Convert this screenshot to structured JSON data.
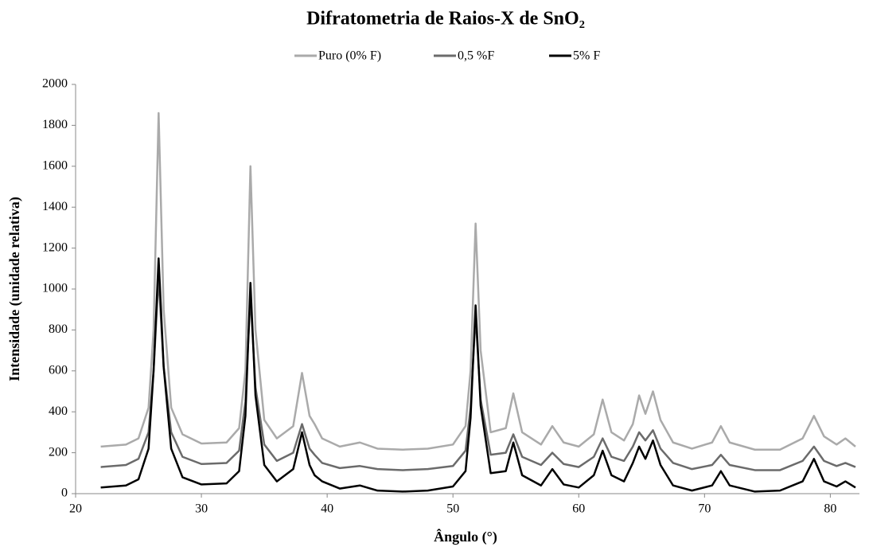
{
  "chart_data": {
    "type": "line",
    "title": "Difratometria de Raios-X de SnO₂",
    "x_label": "Ângulo (°)",
    "y_label": "Intensidade (unidade relativa)",
    "xlim": [
      20,
      82
    ],
    "xticks": [
      20,
      30,
      40,
      50,
      60,
      70,
      80
    ],
    "ylim": [
      0,
      2000
    ],
    "yticks": [
      0,
      200,
      400,
      600,
      800,
      1000,
      1200,
      1400,
      1600,
      1800,
      2000
    ],
    "grid": false,
    "legend": "top",
    "x": [
      22,
      24,
      25,
      25.8,
      26.2,
      26.6,
      27.0,
      27.6,
      28.5,
      30,
      32,
      33,
      33.5,
      33.9,
      34.3,
      35,
      36,
      37.3,
      38.0,
      38.6,
      39.0,
      39.6,
      41,
      42.6,
      44,
      46,
      48,
      50,
      51,
      51.4,
      51.8,
      52.2,
      53,
      54.2,
      54.8,
      55.5,
      57,
      57.9,
      58.8,
      60,
      61.2,
      61.9,
      62.6,
      63.6,
      64.3,
      64.8,
      65.3,
      65.9,
      66.5,
      67.5,
      69,
      70.6,
      71.3,
      72,
      74,
      76,
      77.8,
      78.7,
      79.5,
      80.5,
      81.2,
      82
    ],
    "series": [
      {
        "name": "Puro (0% F)",
        "color": "#aaaaaa",
        "values": [
          230,
          240,
          270,
          420,
          800,
          1860,
          900,
          420,
          290,
          245,
          250,
          320,
          600,
          1600,
          800,
          360,
          270,
          330,
          590,
          380,
          340,
          270,
          230,
          250,
          220,
          215,
          220,
          240,
          330,
          600,
          1320,
          700,
          300,
          320,
          490,
          300,
          240,
          330,
          250,
          230,
          290,
          460,
          300,
          260,
          340,
          480,
          390,
          500,
          360,
          250,
          220,
          250,
          330,
          250,
          215,
          215,
          270,
          380,
          280,
          240,
          270,
          230
        ]
      },
      {
        "name": "0,5 %F",
        "color": "#6b6b6b",
        "values": [
          130,
          140,
          170,
          300,
          600,
          1060,
          620,
          300,
          180,
          145,
          150,
          210,
          450,
          970,
          520,
          240,
          160,
          200,
          340,
          220,
          190,
          150,
          125,
          135,
          120,
          115,
          120,
          135,
          210,
          420,
          870,
          460,
          190,
          200,
          290,
          180,
          140,
          200,
          145,
          130,
          180,
          270,
          180,
          160,
          230,
          300,
          260,
          310,
          220,
          150,
          120,
          140,
          190,
          140,
          115,
          115,
          160,
          230,
          160,
          135,
          150,
          130
        ]
      },
      {
        "name": "5% F",
        "color": "#000000",
        "values": [
          30,
          40,
          70,
          220,
          600,
          1150,
          620,
          220,
          80,
          45,
          50,
          110,
          380,
          1030,
          480,
          140,
          60,
          120,
          300,
          140,
          90,
          60,
          25,
          40,
          15,
          10,
          15,
          35,
          110,
          370,
          920,
          430,
          100,
          110,
          250,
          90,
          40,
          120,
          45,
          30,
          90,
          210,
          90,
          60,
          150,
          230,
          170,
          260,
          140,
          40,
          15,
          40,
          110,
          40,
          10,
          15,
          60,
          170,
          60,
          35,
          60,
          30
        ]
      }
    ]
  }
}
